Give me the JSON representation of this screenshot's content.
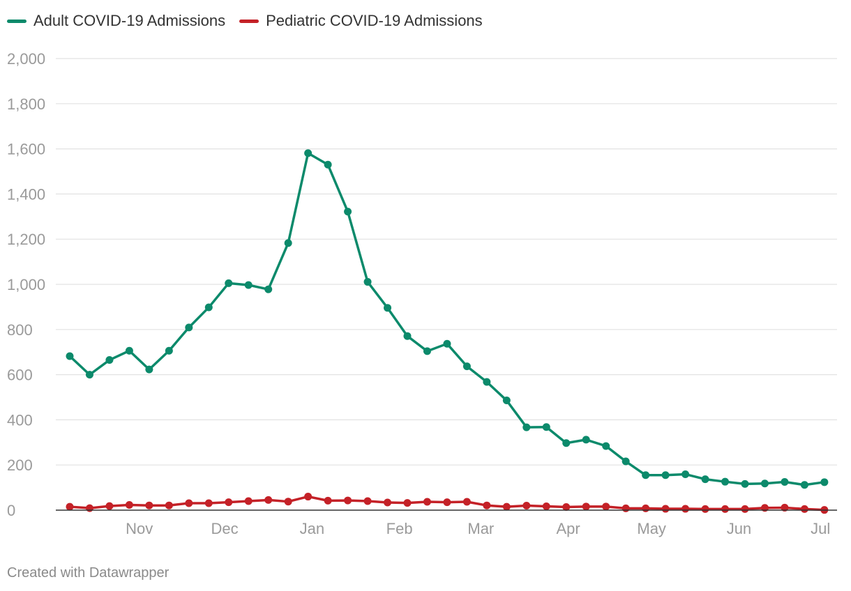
{
  "chart_data": {
    "type": "line",
    "title": "",
    "xlabel": "",
    "ylabel": "",
    "ylim": [
      0,
      2000
    ],
    "y_ticks": [
      0,
      200,
      400,
      600,
      800,
      1000,
      1200,
      1400,
      1600,
      1800,
      2000
    ],
    "y_tick_labels": [
      "0",
      "200",
      "400",
      "600",
      "800",
      "1,000",
      "1,200",
      "1,400",
      "1,600",
      "1,800",
      "2,000"
    ],
    "x_ticks": [
      {
        "label": "Nov",
        "week": 3.5
      },
      {
        "label": "Dec",
        "week": 7.8
      },
      {
        "label": "Jan",
        "week": 12.2
      },
      {
        "label": "Feb",
        "week": 16.6
      },
      {
        "label": "Mar",
        "week": 20.7
      },
      {
        "label": "Apr",
        "week": 25.1
      },
      {
        "label": "May",
        "week": 29.3
      },
      {
        "label": "Jun",
        "week": 33.7
      },
      {
        "label": "Jul",
        "week": 37.8
      }
    ],
    "x": [
      0,
      1,
      2,
      3,
      4,
      5,
      6,
      7,
      8,
      9,
      10,
      11,
      12,
      13,
      14,
      15,
      16,
      17,
      18,
      19,
      20,
      21,
      22,
      23,
      24,
      25,
      26,
      27,
      28,
      29,
      30,
      31,
      32,
      33,
      34,
      35,
      36,
      37,
      38
    ],
    "series": [
      {
        "name": "Adult COVID-19 Admissions",
        "color": "#0c8a6b",
        "values": [
          682,
          600,
          665,
          706,
          623,
          706,
          809,
          898,
          1005,
          997,
          978,
          1183,
          1581,
          1530,
          1322,
          1011,
          896,
          771,
          704,
          737,
          637,
          568,
          486,
          367,
          368,
          297,
          312,
          284,
          216,
          155,
          155,
          159,
          137,
          126,
          116,
          118,
          125,
          112,
          124
        ]
      },
      {
        "name": "Pediatric COVID-19 Admissions",
        "color": "#c42127",
        "values": [
          15,
          9,
          18,
          23,
          21,
          21,
          31,
          31,
          35,
          40,
          45,
          38,
          60,
          42,
          43,
          40,
          34,
          32,
          37,
          35,
          37,
          21,
          15,
          20,
          17,
          14,
          16,
          16,
          8,
          8,
          6,
          6,
          5,
          5,
          5,
          10,
          11,
          5,
          1
        ]
      }
    ]
  },
  "footer": {
    "credit": "Created with Datawrapper"
  }
}
